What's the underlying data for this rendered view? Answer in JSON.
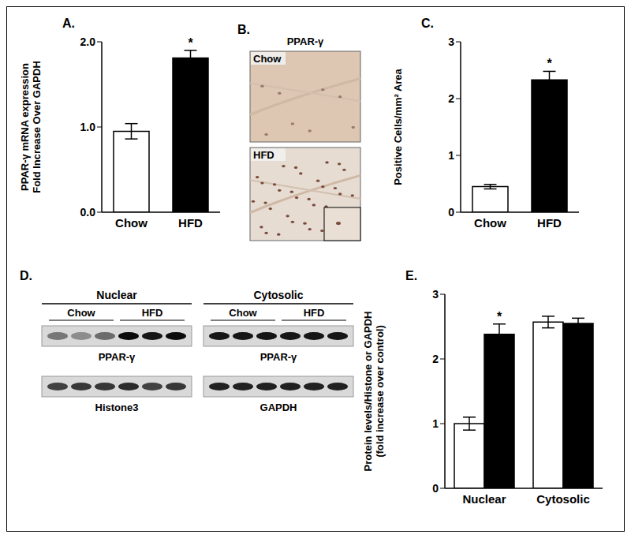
{
  "chart_data": [
    {
      "panel": "A.",
      "type": "bar",
      "categories": [
        "Chow",
        "HFD"
      ],
      "ylabel": [
        "PPAR-γ mRNA expression",
        "Fold Increase Over GAPDH"
      ],
      "ylim": [
        0,
        2.0
      ],
      "yticks": [
        {
          "value": 0,
          "label": "0.0"
        },
        {
          "value": 1,
          "label": "1.0"
        },
        {
          "value": 2,
          "label": "2.0"
        }
      ],
      "grid": false,
      "series": [
        {
          "values": [
            0.95,
            1.81
          ],
          "errors": [
            0.09,
            0.09
          ],
          "significance": [
            null,
            "*"
          ],
          "colors": [
            "#ffffff",
            "#000000"
          ]
        }
      ]
    },
    {
      "panel": "C.",
      "type": "bar",
      "categories": [
        "Chow",
        "HFD"
      ],
      "ylabel": [
        "Positive Cells/mm² Area"
      ],
      "ylim": [
        0,
        3
      ],
      "yticks": [
        0,
        1,
        2,
        3
      ],
      "grid": false,
      "series": [
        {
          "values": [
            0.45,
            2.33
          ],
          "errors": [
            0.04,
            0.15
          ],
          "significance": [
            null,
            "*"
          ],
          "colors": [
            "#ffffff",
            "#000000"
          ]
        }
      ]
    },
    {
      "panel": "E.",
      "type": "bar",
      "categories": [
        "Nuclear",
        "Cytosolic"
      ],
      "ylabel": [
        "Protein levels/Histone or GAPDH",
        "(fold increase over control)"
      ],
      "ylim": [
        0,
        3
      ],
      "yticks": [
        0,
        1,
        2,
        3
      ],
      "grid": false,
      "series": [
        {
          "color": "#ffffff",
          "values": [
            1.0,
            2.57
          ],
          "errors": [
            0.1,
            0.09
          ],
          "significance": [
            null,
            null
          ]
        },
        {
          "color": "#000000",
          "values": [
            2.38,
            2.55
          ],
          "errors": [
            0.16,
            0.08
          ],
          "significance": [
            "*",
            null
          ]
        }
      ]
    }
  ],
  "images": {
    "panel": "B.",
    "title": "PPAR-γ",
    "labels": [
      "Chow",
      "HFD"
    ]
  },
  "blot": {
    "panel": "D.",
    "groups": [
      {
        "name": "Nuclear",
        "lanes": [
          "Chow",
          "HFD"
        ],
        "rows": [
          {
            "label": "PPAR-γ",
            "intensity": [
              0.45,
              0.35,
              0.5,
              0.95,
              0.9,
              0.95
            ]
          },
          {
            "label": "Histone3",
            "intensity": [
              0.7,
              0.75,
              0.75,
              0.8,
              0.7,
              0.75
            ]
          }
        ]
      },
      {
        "name": "Cytosolic",
        "lanes": [
          "Chow",
          "HFD"
        ],
        "rows": [
          {
            "label": "PPAR-γ",
            "intensity": [
              0.9,
              0.9,
              0.9,
              0.9,
              0.9,
              0.9
            ]
          },
          {
            "label": "GAPDH",
            "intensity": [
              0.85,
              0.85,
              0.85,
              0.85,
              0.85,
              0.85
            ]
          }
        ]
      }
    ]
  }
}
